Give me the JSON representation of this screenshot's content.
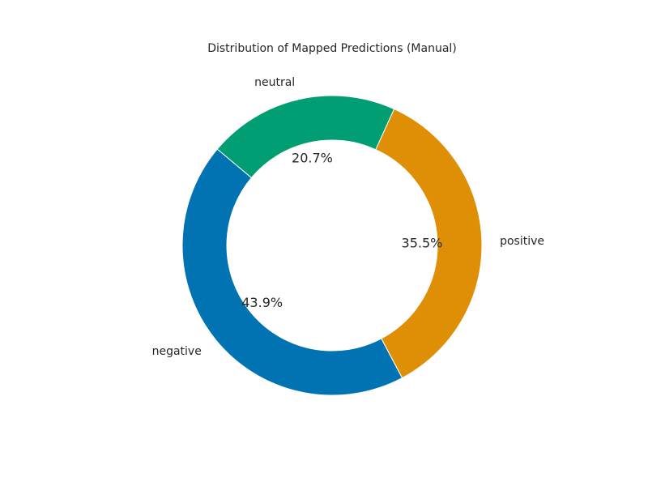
{
  "chart_data": {
    "type": "pie",
    "style": "donut",
    "title": "Distribution of Mapped Predictions (Manual)",
    "categories": [
      "negative",
      "positive",
      "neutral"
    ],
    "values": [
      43.9,
      35.5,
      20.7
    ],
    "percent_labels": [
      "43.9%",
      "35.5%",
      "20.7%"
    ],
    "colors": [
      "#0173b2",
      "#de8f05",
      "#029e73"
    ],
    "start_angle_deg": 140,
    "direction": "counterclockwise",
    "legend": "none",
    "grid": false
  }
}
